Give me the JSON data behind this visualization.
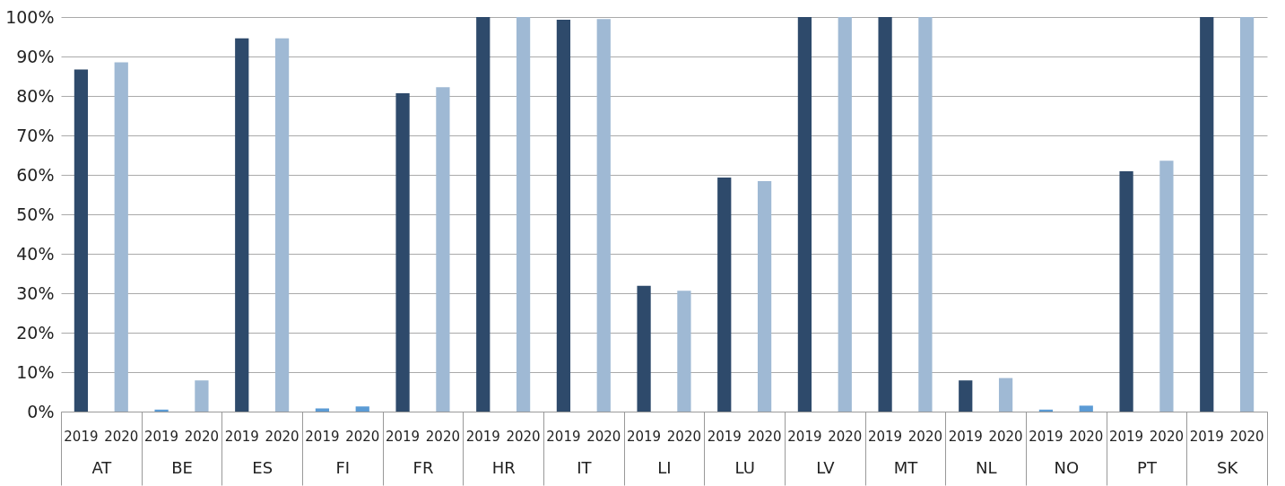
{
  "chart_data": {
    "type": "bar",
    "categories": [
      "AT",
      "BE",
      "ES",
      "FI",
      "FR",
      "HR",
      "IT",
      "LI",
      "LU",
      "LV",
      "MT",
      "NL",
      "NO",
      "PT",
      "SK"
    ],
    "series": [
      {
        "name": "2019",
        "color": "#2e4a6b",
        "colors": [
          null,
          "#5b9bd5",
          null,
          "#5b9bd5",
          null,
          null,
          null,
          null,
          null,
          null,
          null,
          null,
          "#5b9bd5",
          null,
          null
        ],
        "values": [
          86.7,
          0.5,
          94.6,
          0.8,
          80.7,
          100,
          99.3,
          31.9,
          59.3,
          100,
          100,
          7.9,
          0.5,
          60.9,
          100
        ]
      },
      {
        "name": "2020",
        "color": "#9fb9d4",
        "colors": [
          null,
          null,
          null,
          "#5b9bd5",
          null,
          null,
          null,
          null,
          null,
          null,
          null,
          null,
          "#5b9bd5",
          null,
          null
        ],
        "values": [
          88.5,
          7.9,
          94.6,
          1.3,
          82.2,
          100,
          99.5,
          30.6,
          58.4,
          100,
          100,
          8.5,
          1.5,
          63.6,
          100
        ]
      }
    ],
    "ylim": [
      0,
      100
    ],
    "yticks": [
      {
        "value": 0,
        "label": "0%"
      },
      {
        "value": 10,
        "label": "10%"
      },
      {
        "value": 20,
        "label": "20%"
      },
      {
        "value": 30,
        "label": "30%"
      },
      {
        "value": 40,
        "label": "40%"
      },
      {
        "value": 50,
        "label": "50%"
      },
      {
        "value": 60,
        "label": "60%"
      },
      {
        "value": 70,
        "label": "70%"
      },
      {
        "value": 80,
        "label": "80%"
      },
      {
        "value": 90,
        "label": "90%"
      },
      {
        "value": 100,
        "label": "100%"
      }
    ],
    "grid": "y"
  }
}
